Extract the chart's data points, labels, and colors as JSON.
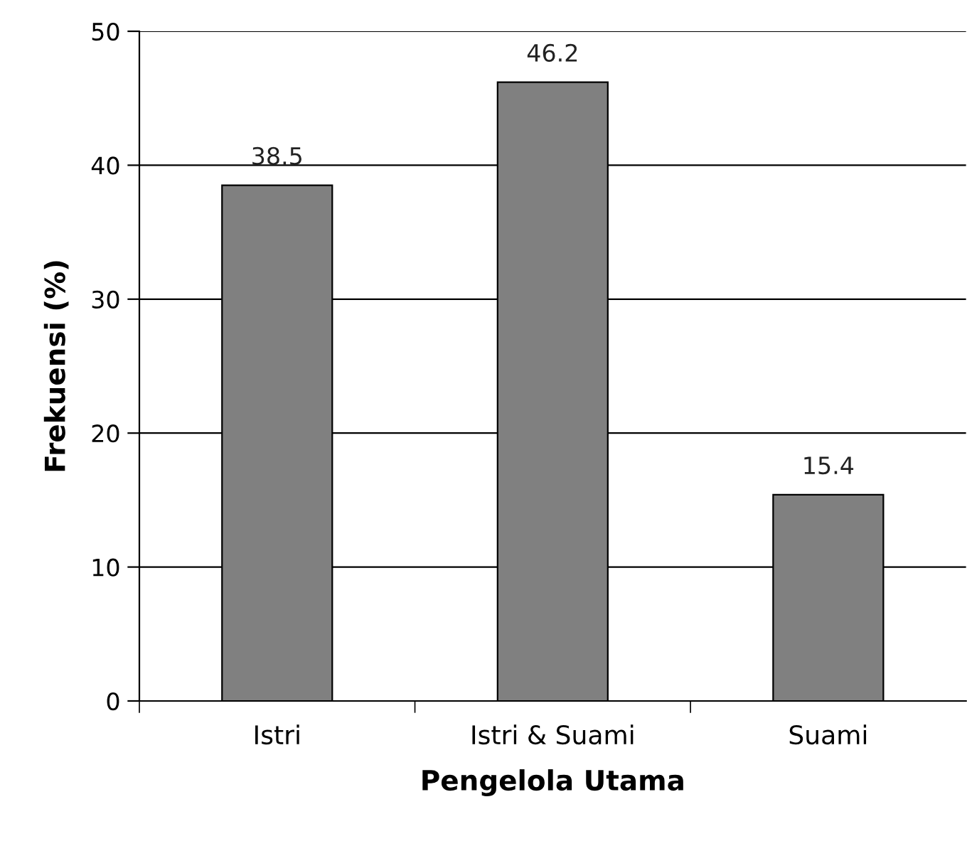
{
  "chart_data": {
    "type": "bar",
    "xlabel": "Pengelola Utama",
    "ylabel": "Frekuensi (%)",
    "categories": [
      "Istri",
      "Istri & Suami",
      "Suami"
    ],
    "values": [
      38.5,
      46.2,
      15.4
    ],
    "color": "#808080",
    "ylim": [
      0,
      50
    ],
    "yticks": [
      0,
      10,
      20,
      30,
      40,
      50
    ],
    "grid": "y",
    "data_labels": true
  }
}
